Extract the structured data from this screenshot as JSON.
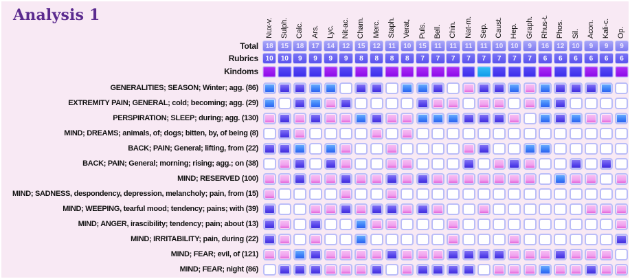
{
  "title": "Analysis 1",
  "summary_rows": {
    "total_label": "Total",
    "rubrics_label": "Rubrics",
    "kingdoms_label": "Kindoms"
  },
  "remedies": [
    "Nux-v.",
    "Sulph.",
    "Calc.",
    "Ars.",
    "Lyc.",
    "Nit-ac.",
    "Cham.",
    "Merc.",
    "Staph.",
    "Verat,",
    "Puls.",
    "Bell.",
    "Chin.",
    "Nat-m.",
    "Sep.",
    "Caust.",
    "Hep.",
    "Graph.",
    "Rhus-t.",
    "Phos.",
    "Sil.",
    "Acon.",
    "Kali-c.",
    "Op."
  ],
  "totals": [
    18,
    15,
    18,
    17,
    14,
    12,
    15,
    12,
    11,
    10,
    15,
    11,
    11,
    11,
    11,
    10,
    10,
    9,
    16,
    12,
    10,
    9,
    9,
    9
  ],
  "rubric_counts": [
    10,
    10,
    9,
    9,
    9,
    9,
    8,
    8,
    8,
    8,
    7,
    7,
    7,
    7,
    7,
    7,
    7,
    7,
    6,
    6,
    6,
    6,
    6,
    6
  ],
  "kingdoms": [
    "purple",
    "blue",
    "blue",
    "blue",
    "purple",
    "blue",
    "purple",
    "blue",
    "purple",
    "purple",
    "purple",
    "purple",
    "purple",
    "blue",
    "cyan",
    "blue",
    "blue",
    "blue",
    "purple",
    "blue",
    "blue",
    "purple",
    "blue",
    "purple"
  ],
  "grade_legend": {
    "B": "blue",
    "V": "violet",
    "K": "pink",
    "W": "empty"
  },
  "rubric_rows": [
    {
      "label": "GENERALITIES; SEASON; Winter; agg. (86)",
      "cells": [
        "B",
        "V",
        "V",
        "B",
        "B",
        "W",
        "V",
        "V",
        "W",
        "B",
        "B",
        "V",
        "W",
        "K",
        "V",
        "V",
        "B",
        "K",
        "B",
        "V",
        "V",
        "V",
        "B",
        "W"
      ]
    },
    {
      "label": "EXTREMITY PAIN; GENERAL; cold; becoming; agg. (29)",
      "cells": [
        "B",
        "W",
        "V",
        "B",
        "K",
        "V",
        "W",
        "W",
        "W",
        "W",
        "V",
        "K",
        "K",
        "W",
        "K",
        "K",
        "W",
        "K",
        "B",
        "V",
        "W",
        "W",
        "W",
        "W"
      ]
    },
    {
      "label": "PERSPIRATION; SLEEP; during; agg. (130)",
      "cells": [
        "K",
        "V",
        "K",
        "V",
        "K",
        "K",
        "B",
        "V",
        "K",
        "K",
        "B",
        "B",
        "B",
        "V",
        "V",
        "V",
        "K",
        "W",
        "B",
        "V",
        "B",
        "K",
        "K",
        "B"
      ]
    },
    {
      "label": "MIND; DREAMS; animals, of; dogs; bitten, by, of being (8)",
      "cells": [
        "W",
        "V",
        "K",
        "W",
        "W",
        "W",
        "W",
        "K",
        "W",
        "K",
        "W",
        "W",
        "W",
        "W",
        "W",
        "W",
        "W",
        "W",
        "W",
        "W",
        "W",
        "W",
        "W",
        "W"
      ]
    },
    {
      "label": "BACK; PAIN; General; lifting, from (22)",
      "cells": [
        "V",
        "V",
        "B",
        "W",
        "B",
        "K",
        "W",
        "W",
        "K",
        "W",
        "W",
        "W",
        "W",
        "K",
        "V",
        "W",
        "W",
        "B",
        "B",
        "W",
        "W",
        "W",
        "W",
        "W"
      ]
    },
    {
      "label": "BACK; PAIN; General; morning; rising; agg.; on (38)",
      "cells": [
        "W",
        "K",
        "V",
        "W",
        "V",
        "K",
        "W",
        "W",
        "K",
        "K",
        "W",
        "W",
        "W",
        "V",
        "W",
        "K",
        "V",
        "K",
        "W",
        "W",
        "V",
        "W",
        "V",
        "W"
      ]
    },
    {
      "label": "MIND; RESERVED (100)",
      "cells": [
        "K",
        "K",
        "V",
        "K",
        "K",
        "V",
        "K",
        "K",
        "V",
        "K",
        "V",
        "K",
        "K",
        "K",
        "K",
        "K",
        "K",
        "K",
        "W",
        "B",
        "K",
        "K",
        "W",
        "K"
      ]
    },
    {
      "label": "MIND; SADNESS, despondency, depression, melancholy; pain, from (15)",
      "cells": [
        "K",
        "W",
        "W",
        "W",
        "W",
        "K",
        "W",
        "W",
        "K",
        "W",
        "W",
        "W",
        "W",
        "W",
        "W",
        "W",
        "W",
        "W",
        "W",
        "W",
        "W",
        "W",
        "W",
        "W"
      ]
    },
    {
      "label": "MIND; WEEPING, tearful mood; tendency; pains; with (39)",
      "cells": [
        "V",
        "W",
        "W",
        "K",
        "K",
        "V",
        "K",
        "V",
        "V",
        "K",
        "V",
        "K",
        "W",
        "W",
        "K",
        "W",
        "W",
        "W",
        "W",
        "W",
        "W",
        "K",
        "K",
        "K"
      ]
    },
    {
      "label": "MIND; ANGER, irascibility; tendency; pain; about (13)",
      "cells": [
        "V",
        "K",
        "W",
        "V",
        "W",
        "W",
        "B",
        "K",
        "K",
        "W",
        "W",
        "W",
        "K",
        "W",
        "W",
        "W",
        "W",
        "W",
        "W",
        "W",
        "W",
        "W",
        "W",
        "K"
      ]
    },
    {
      "label": "MIND; IRRITABILITY; pain, during (22)",
      "cells": [
        "V",
        "K",
        "W",
        "K",
        "W",
        "W",
        "B",
        "W",
        "W",
        "W",
        "W",
        "W",
        "K",
        "W",
        "W",
        "W",
        "K",
        "W",
        "W",
        "W",
        "W",
        "W",
        "W",
        "V"
      ]
    },
    {
      "label": "MIND; FEAR; evil, of (121)",
      "cells": [
        "K",
        "K",
        "B",
        "V",
        "K",
        "K",
        "K",
        "K",
        "V",
        "K",
        "K",
        "K",
        "V",
        "V",
        "V",
        "V",
        "K",
        "K",
        "K",
        "V",
        "K",
        "K",
        "K",
        "W"
      ]
    },
    {
      "label": "MIND; FEAR; night (86)",
      "cells": [
        "W",
        "V",
        "V",
        "V",
        "K",
        "K",
        "K",
        "V",
        "W",
        "K",
        "V",
        "V",
        "V",
        "V",
        "W",
        "K",
        "K",
        "K",
        "B",
        "K",
        "K",
        "V",
        "K",
        "K"
      ]
    }
  ],
  "colors": {
    "background": "#f8e9f4",
    "title": "#5b2b8f",
    "cell_blue": "#3d82f8",
    "cell_violet": "#5a48ec",
    "cell_pink": "#f0a2ee",
    "cell_empty": "#ffffff",
    "kingdom_purple": "#8c0ae8",
    "kingdom_blue": "#3c2cea",
    "kingdom_cyan": "#0f9ae8"
  }
}
